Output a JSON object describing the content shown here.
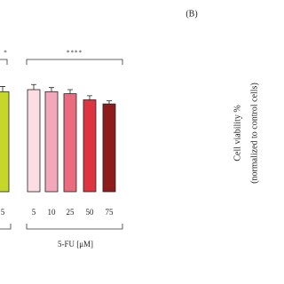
{
  "chart_data": {
    "type": "bar",
    "categories": [
      "5",
      "5",
      "10",
      "25",
      "50",
      "75"
    ],
    "values": [
      98,
      100,
      98,
      96,
      90,
      86
    ],
    "errors": [
      5,
      5,
      4,
      4,
      4,
      3
    ],
    "colors": [
      "#c6d62a",
      "#fbdde3",
      "#f2a7bb",
      "#ea6b7e",
      "#dc3540",
      "#8e1c1c"
    ],
    "ylim": [
      0,
      120
    ],
    "group_label": "5-FU [μM]",
    "significance": [
      "*",
      "****"
    ]
  },
  "panel_b": {
    "label": "(B)",
    "y_label": [
      "Cell viability %",
      "(normalized to control cells)"
    ]
  }
}
